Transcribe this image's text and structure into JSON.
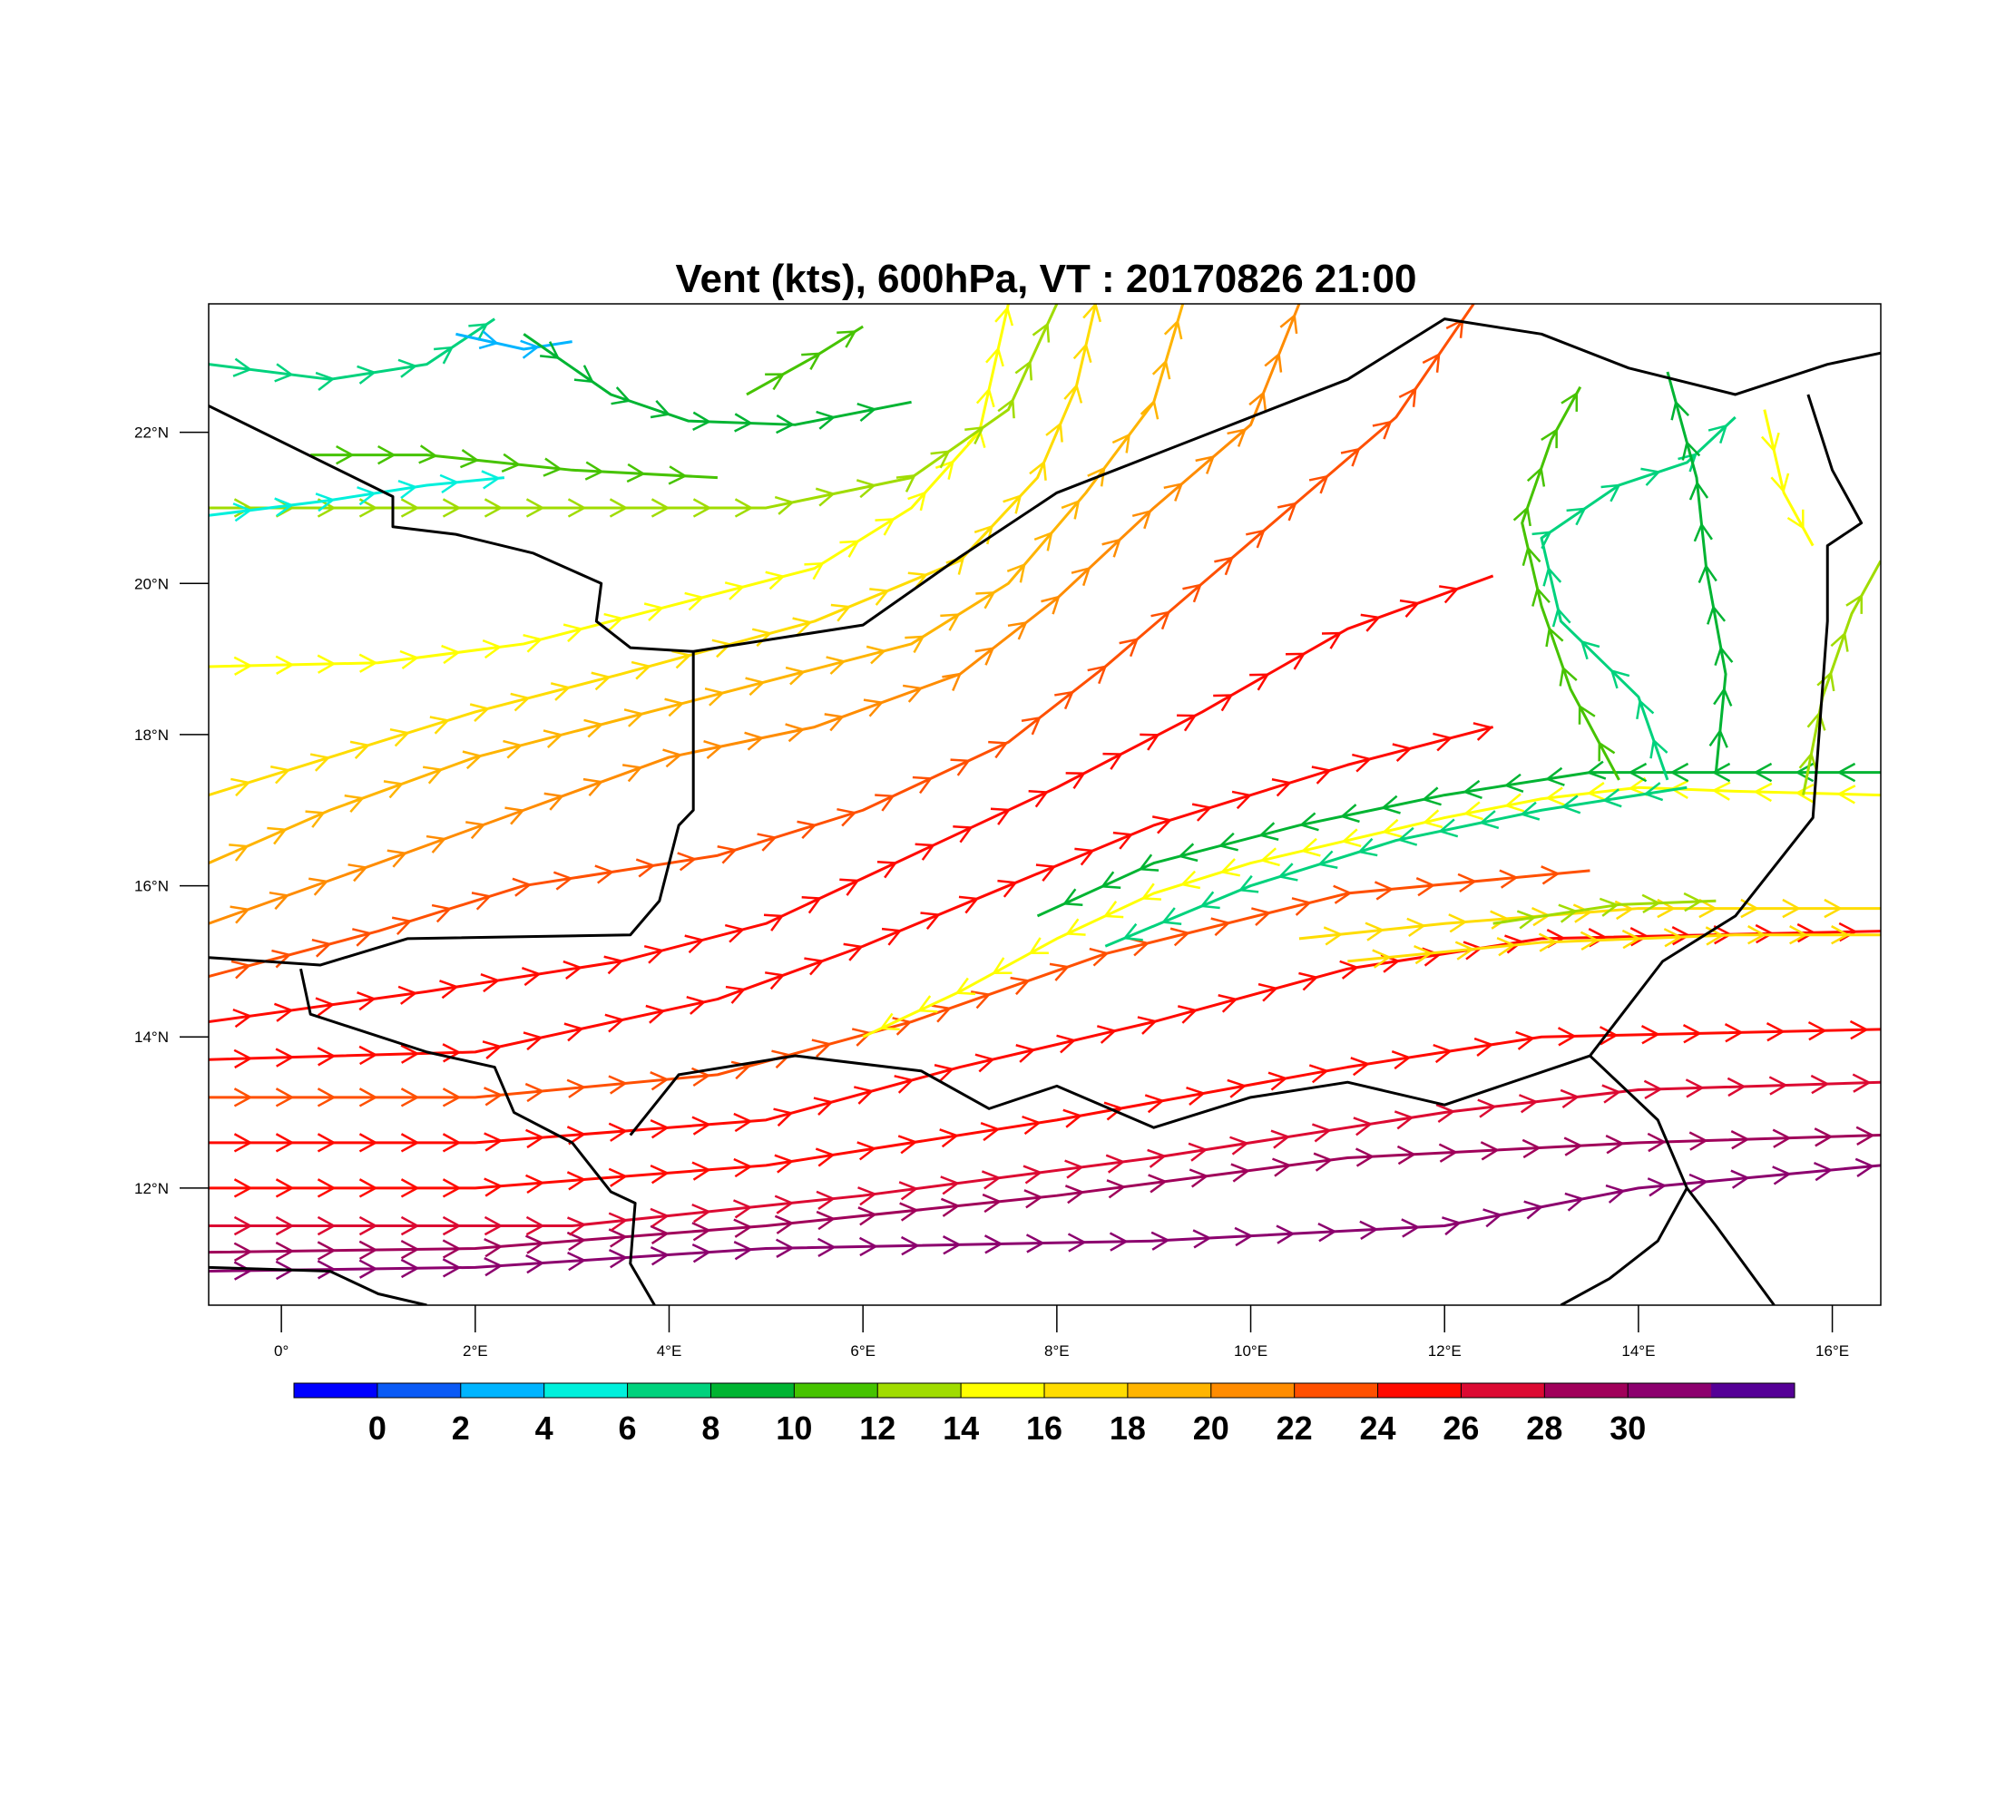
{
  "title": "Vent (kts), 600hPa, VT : 20170826  21:00",
  "map": {
    "lon_range": [
      -0.75,
      16.5
    ],
    "lat_range": [
      10.45,
      23.7
    ],
    "x_ticks": [
      "0°",
      "2°E",
      "4°E",
      "6°E",
      "8°E",
      "10°E",
      "12°E",
      "14°E",
      "16°E"
    ],
    "x_tick_values": [
      0,
      2,
      4,
      6,
      8,
      10,
      12,
      14,
      16
    ],
    "y_ticks": [
      "12°N",
      "14°N",
      "16°N",
      "18°N",
      "20°N",
      "22°N"
    ],
    "y_tick_values": [
      12,
      14,
      16,
      18,
      20,
      22
    ],
    "border_color": "#000000",
    "boundaries": [
      [
        [
          -0.75,
          22.35
        ],
        [
          1.15,
          21.15
        ],
        [
          1.15,
          20.75
        ],
        [
          1.8,
          20.65
        ],
        [
          2.6,
          20.4
        ],
        [
          3.3,
          20.0
        ],
        [
          3.25,
          19.5
        ],
        [
          3.6,
          19.15
        ],
        [
          4.25,
          19.1
        ],
        [
          6.0,
          19.45
        ],
        [
          7.0,
          20.35
        ],
        [
          8.0,
          21.2
        ],
        [
          11.0,
          22.7
        ],
        [
          12.0,
          23.5
        ],
        [
          13.0,
          23.3
        ],
        [
          13.9,
          22.85
        ],
        [
          15.0,
          22.5
        ],
        [
          15.95,
          22.9
        ],
        [
          16.5,
          23.05
        ]
      ],
      [
        [
          4.25,
          19.1
        ],
        [
          4.25,
          17.0
        ],
        [
          4.1,
          16.8
        ],
        [
          3.9,
          15.8
        ],
        [
          3.6,
          15.35
        ],
        [
          1.3,
          15.3
        ],
        [
          0.4,
          14.95
        ],
        [
          -0.75,
          15.05
        ]
      ],
      [
        [
          0.2,
          14.9
        ],
        [
          0.3,
          14.3
        ],
        [
          1.5,
          13.8
        ],
        [
          2.2,
          13.6
        ],
        [
          2.4,
          13.0
        ],
        [
          3.0,
          12.6
        ],
        [
          3.4,
          11.95
        ],
        [
          3.65,
          11.8
        ],
        [
          3.6,
          11.0
        ],
        [
          3.85,
          10.45
        ]
      ],
      [
        [
          3.6,
          12.7
        ],
        [
          4.1,
          13.5
        ],
        [
          5.3,
          13.75
        ],
        [
          6.6,
          13.55
        ],
        [
          7.3,
          13.05
        ],
        [
          8.0,
          13.35
        ],
        [
          9.0,
          12.8
        ],
        [
          10.0,
          13.2
        ],
        [
          11.0,
          13.4
        ],
        [
          12.0,
          13.1
        ],
        [
          13.5,
          13.75
        ],
        [
          14.25,
          15.0
        ],
        [
          15.0,
          15.6
        ],
        [
          15.8,
          16.9
        ],
        [
          15.95,
          19.5
        ],
        [
          15.95,
          20.5
        ],
        [
          16.3,
          20.8
        ],
        [
          16.0,
          21.5
        ],
        [
          15.75,
          22.5
        ]
      ],
      [
        [
          13.5,
          13.75
        ],
        [
          14.2,
          12.9
        ],
        [
          14.5,
          12.0
        ],
        [
          14.2,
          11.3
        ],
        [
          13.7,
          10.8
        ],
        [
          13.2,
          10.45
        ]
      ],
      [
        [
          14.5,
          12.0
        ],
        [
          14.8,
          11.5
        ],
        [
          15.2,
          10.8
        ],
        [
          15.4,
          10.45
        ]
      ],
      [
        [
          -0.75,
          10.95
        ],
        [
          0.5,
          10.9
        ],
        [
          1.0,
          10.6
        ],
        [
          1.5,
          10.45
        ]
      ]
    ]
  },
  "colorbar": {
    "labels": [
      "0",
      "2",
      "4",
      "6",
      "8",
      "10",
      "12",
      "14",
      "16",
      "18",
      "20",
      "22",
      "24",
      "26",
      "28",
      "30"
    ],
    "colors": [
      "#0000ff",
      "#0a5af5",
      "#00b4ff",
      "#00f0dc",
      "#00d27d",
      "#00b432",
      "#46c300",
      "#a0dc00",
      "#ffff00",
      "#ffdc00",
      "#ffb400",
      "#ff8c00",
      "#ff5000",
      "#ff0a00",
      "#dc0a32",
      "#a0005a",
      "#8c006e",
      "#550096"
    ]
  },
  "chart_data": {
    "type": "streamline",
    "variable": "Vent (kts)",
    "level": "600hPa",
    "valid_time": "20170826  21:00",
    "x_range": [
      -0.75,
      16.5
    ],
    "y_range": [
      10.45,
      23.7
    ],
    "streamlines": [
      {
        "speed": 30,
        "path": [
          [
            -0.75,
            10.9
          ],
          [
            2,
            10.95
          ],
          [
            5,
            11.2
          ],
          [
            9,
            11.3
          ],
          [
            12,
            11.5
          ],
          [
            14,
            12.0
          ],
          [
            16.5,
            12.3
          ]
        ]
      },
      {
        "speed": 28,
        "path": [
          [
            -0.75,
            11.15
          ],
          [
            2,
            11.2
          ],
          [
            5,
            11.5
          ],
          [
            8,
            11.9
          ],
          [
            11,
            12.4
          ],
          [
            14,
            12.6
          ],
          [
            16.5,
            12.7
          ]
        ]
      },
      {
        "speed": 27,
        "path": [
          [
            -0.75,
            11.5
          ],
          [
            3,
            11.5
          ],
          [
            6,
            11.9
          ],
          [
            9,
            12.4
          ],
          [
            12,
            13.0
          ],
          [
            14,
            13.3
          ],
          [
            16.5,
            13.4
          ]
        ]
      },
      {
        "speed": 25,
        "path": [
          [
            -0.75,
            12.0
          ],
          [
            2,
            12.0
          ],
          [
            5,
            12.3
          ],
          [
            8,
            12.9
          ],
          [
            11,
            13.6
          ],
          [
            13,
            14.0
          ],
          [
            16.5,
            14.1
          ]
        ]
      },
      {
        "speed": 24,
        "path": [
          [
            -0.75,
            12.6
          ],
          [
            2,
            12.6
          ],
          [
            5,
            12.9
          ],
          [
            7,
            13.6
          ],
          [
            9,
            14.2
          ],
          [
            11,
            14.9
          ],
          [
            13,
            15.3
          ],
          [
            16.5,
            15.4
          ]
        ]
      },
      {
        "speed": 22,
        "path": [
          [
            -0.75,
            13.2
          ],
          [
            2,
            13.2
          ],
          [
            4.5,
            13.5
          ],
          [
            6.5,
            14.2
          ],
          [
            8.5,
            15.1
          ],
          [
            11,
            15.9
          ],
          [
            13.5,
            16.2
          ]
        ]
      },
      {
        "speed": 25,
        "path": [
          [
            -0.75,
            13.7
          ],
          [
            2,
            13.8
          ],
          [
            4.5,
            14.5
          ],
          [
            6,
            15.2
          ],
          [
            7.5,
            16.0
          ],
          [
            9,
            16.8
          ],
          [
            11,
            17.6
          ],
          [
            12.5,
            18.1
          ]
        ]
      },
      {
        "speed": 24,
        "path": [
          [
            -0.75,
            14.2
          ],
          [
            1.5,
            14.6
          ],
          [
            3.5,
            15.0
          ],
          [
            5,
            15.5
          ],
          [
            6.5,
            16.4
          ],
          [
            8,
            17.3
          ],
          [
            9.5,
            18.3
          ],
          [
            11,
            19.4
          ],
          [
            12.5,
            20.1
          ]
        ]
      },
      {
        "speed": 22,
        "path": [
          [
            -0.75,
            14.8
          ],
          [
            1,
            15.4
          ],
          [
            2.5,
            16.0
          ],
          [
            4.5,
            16.4
          ],
          [
            6,
            17.0
          ],
          [
            7.5,
            17.9
          ],
          [
            8.5,
            18.9
          ],
          [
            9.5,
            20.0
          ],
          [
            10.5,
            21.1
          ],
          [
            11.5,
            22.2
          ],
          [
            12.3,
            23.7
          ]
        ]
      },
      {
        "speed": 21,
        "path": [
          [
            -0.75,
            15.5
          ],
          [
            1,
            16.3
          ],
          [
            2.5,
            17.0
          ],
          [
            4,
            17.7
          ],
          [
            5.5,
            18.1
          ],
          [
            7,
            18.8
          ],
          [
            8,
            19.8
          ],
          [
            9,
            21.0
          ],
          [
            10,
            22.1
          ],
          [
            10.5,
            23.7
          ]
        ]
      },
      {
        "speed": 18,
        "path": [
          [
            -0.75,
            16.3
          ],
          [
            0.5,
            17.0
          ],
          [
            2,
            17.7
          ],
          [
            3.5,
            18.2
          ],
          [
            5,
            18.7
          ],
          [
            6.5,
            19.2
          ],
          [
            7.5,
            20.0
          ],
          [
            8.3,
            21.2
          ],
          [
            9,
            22.4
          ],
          [
            9.3,
            23.7
          ]
        ]
      },
      {
        "speed": 16,
        "path": [
          [
            -0.75,
            17.2
          ],
          [
            0.5,
            17.7
          ],
          [
            2,
            18.3
          ],
          [
            3.5,
            18.8
          ],
          [
            5.5,
            19.5
          ],
          [
            7,
            20.3
          ],
          [
            7.8,
            21.4
          ],
          [
            8.2,
            22.6
          ],
          [
            8.4,
            23.7
          ]
        ]
      },
      {
        "speed": 14,
        "path": [
          [
            -0.75,
            18.9
          ],
          [
            1,
            18.95
          ],
          [
            2.5,
            19.2
          ],
          [
            4,
            19.7
          ],
          [
            5.5,
            20.2
          ],
          [
            6.5,
            21.0
          ],
          [
            7.2,
            22.0
          ],
          [
            7.5,
            23.7
          ]
        ]
      },
      {
        "speed": 12,
        "path": [
          [
            -0.75,
            21.0
          ],
          [
            1,
            21.0
          ],
          [
            3,
            21.0
          ],
          [
            5,
            21.0
          ],
          [
            6.5,
            21.4
          ],
          [
            7.5,
            22.3
          ],
          [
            8.0,
            23.7
          ]
        ]
      },
      {
        "speed": 10,
        "path": [
          [
            0.3,
            21.7
          ],
          [
            1.5,
            21.7
          ],
          [
            3,
            21.5
          ],
          [
            4.5,
            21.4
          ]
        ]
      },
      {
        "speed": 5,
        "path": [
          [
            -0.75,
            20.9
          ],
          [
            0.5,
            21.1
          ],
          [
            1.5,
            21.3
          ],
          [
            2.3,
            21.4
          ]
        ]
      },
      {
        "speed": 7,
        "path": [
          [
            -0.75,
            22.9
          ],
          [
            0.5,
            22.7
          ],
          [
            1.5,
            22.9
          ],
          [
            2.2,
            23.5
          ]
        ]
      },
      {
        "speed": 3,
        "path": [
          [
            1.8,
            23.3
          ],
          [
            2.5,
            23.1
          ],
          [
            3.0,
            23.2
          ]
        ]
      },
      {
        "speed": 9,
        "path": [
          [
            2.5,
            23.3
          ],
          [
            3.4,
            22.5
          ],
          [
            4.2,
            22.15
          ],
          [
            5.3,
            22.1
          ],
          [
            6.5,
            22.4
          ]
        ]
      },
      {
        "speed": 10,
        "path": [
          [
            4.8,
            22.5
          ],
          [
            5.5,
            23.0
          ],
          [
            6.0,
            23.4
          ]
        ]
      },
      {
        "speed": 15,
        "path": [
          [
            16.5,
            17.2
          ],
          [
            15,
            17.25
          ],
          [
            14,
            17.3
          ],
          [
            13,
            17.15
          ],
          [
            12,
            16.9
          ],
          [
            11,
            16.6
          ],
          [
            10,
            16.3
          ],
          [
            9,
            15.9
          ],
          [
            8,
            15.3
          ],
          [
            7,
            14.6
          ],
          [
            6,
            14.0
          ]
        ]
      },
      {
        "speed": 9,
        "path": [
          [
            16.5,
            17.5
          ],
          [
            15,
            17.5
          ],
          [
            13.5,
            17.5
          ],
          [
            12,
            17.2
          ],
          [
            10.5,
            16.8
          ],
          [
            9,
            16.3
          ],
          [
            7.8,
            15.6
          ]
        ]
      },
      {
        "speed": 7,
        "path": [
          [
            14.5,
            17.3
          ],
          [
            13,
            17.0
          ],
          [
            11.5,
            16.6
          ],
          [
            10,
            16.0
          ],
          [
            8.5,
            15.2
          ]
        ]
      },
      {
        "speed": 6,
        "path": [
          [
            14.3,
            17.4
          ],
          [
            14.0,
            18.5
          ],
          [
            13.2,
            19.5
          ],
          [
            13.0,
            20.6
          ],
          [
            13.8,
            21.3
          ],
          [
            14.5,
            21.6
          ],
          [
            15.0,
            22.2
          ]
        ]
      },
      {
        "speed": 9,
        "path": [
          [
            14.8,
            17.5
          ],
          [
            14.9,
            18.8
          ],
          [
            14.7,
            20.2
          ],
          [
            14.6,
            21.4
          ],
          [
            14.3,
            22.8
          ]
        ]
      },
      {
        "speed": 10,
        "path": [
          [
            13.8,
            17.4
          ],
          [
            13.3,
            18.6
          ],
          [
            13.0,
            19.7
          ],
          [
            12.8,
            20.8
          ],
          [
            13.1,
            21.9
          ],
          [
            13.4,
            22.6
          ]
        ]
      },
      {
        "speed": 12,
        "path": [
          [
            15.7,
            17.2
          ],
          [
            15.9,
            18.5
          ],
          [
            16.2,
            19.6
          ],
          [
            16.5,
            20.3
          ]
        ]
      },
      {
        "speed": 14,
        "path": [
          [
            15.3,
            22.3
          ],
          [
            15.5,
            21.2
          ],
          [
            15.8,
            20.5
          ]
        ]
      },
      {
        "speed": 16,
        "path": [
          [
            10.5,
            15.3
          ],
          [
            12,
            15.5
          ],
          [
            14,
            15.7
          ],
          [
            16.5,
            15.7
          ]
        ]
      },
      {
        "speed": 17,
        "path": [
          [
            11,
            15.0
          ],
          [
            13,
            15.25
          ],
          [
            15,
            15.35
          ],
          [
            16.5,
            15.35
          ]
        ]
      },
      {
        "speed": 13,
        "path": [
          [
            12.5,
            15.5
          ],
          [
            13.8,
            15.75
          ],
          [
            14.8,
            15.8
          ]
        ]
      }
    ]
  }
}
